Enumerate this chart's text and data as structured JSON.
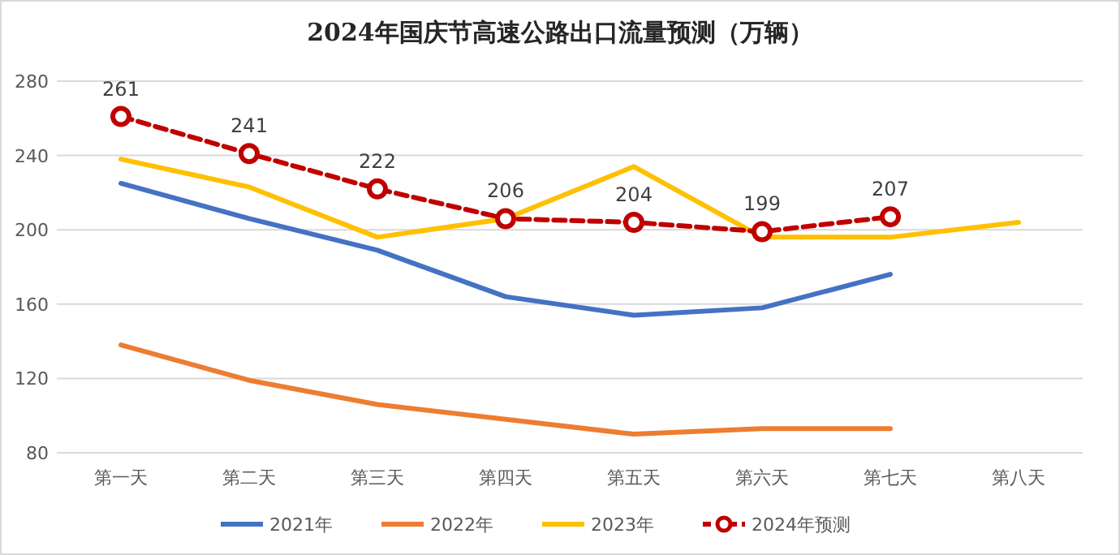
{
  "chart_data": {
    "type": "line",
    "title": "2024年国庆节高速公路出口流量预测（万辆）",
    "categories": [
      "第一天",
      "第二天",
      "第三天",
      "第四天",
      "第五天",
      "第六天",
      "第七天",
      "第八天"
    ],
    "series": [
      {
        "name": "2021年",
        "color": "#4472c4",
        "values": [
          225,
          206,
          189,
          164,
          154,
          158,
          176,
          null
        ]
      },
      {
        "name": "2022年",
        "color": "#ed7d31",
        "values": [
          138,
          119,
          106,
          98,
          90,
          93,
          93,
          null
        ]
      },
      {
        "name": "2023年",
        "color": "#ffc000",
        "values": [
          238,
          223,
          196,
          206,
          234,
          196,
          196,
          204
        ]
      },
      {
        "name": "2024年预测",
        "color": "#c00000",
        "values": [
          261,
          241,
          222,
          206,
          204,
          199,
          207,
          null
        ],
        "marker": "circle",
        "line_style": "dashed",
        "value_labels": [
          "261",
          "241",
          "222",
          "206",
          "204",
          "199",
          "207",
          null
        ]
      }
    ],
    "ylim": [
      80,
      280
    ],
    "yticks": [
      80,
      120,
      160,
      200,
      240,
      280
    ],
    "grid": "y",
    "legend": "bottom"
  }
}
